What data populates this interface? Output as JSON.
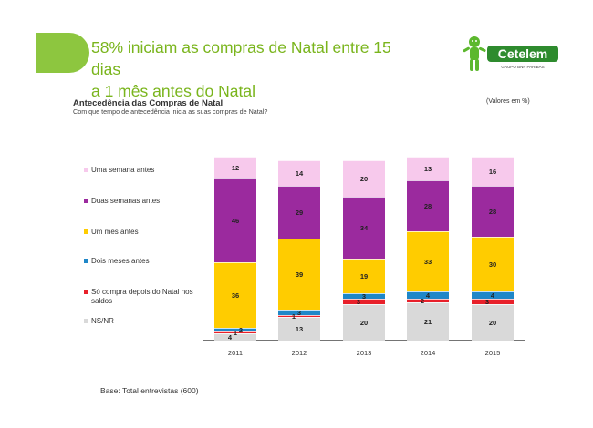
{
  "header": {
    "title_line1": "58% iniciam as compras de Natal entre 15 dias",
    "title_line2": "a 1 mês antes do Natal"
  },
  "logo": {
    "brand": "Cetelem",
    "tagline": "GRUPO BNP PARIBAS",
    "color": "#2e8b2e"
  },
  "section": {
    "title": "Antecedência das Compras de Natal",
    "subtitle": "Com que tempo de antecedência inicia as suas compras de Natal?",
    "units": "(Valores em %)"
  },
  "footer": {
    "base": "Base: Total entrevistas (600)"
  },
  "chart_data": {
    "type": "bar",
    "stacked": true,
    "categories": [
      "2011",
      "2012",
      "2013",
      "2014",
      "2015"
    ],
    "series": [
      {
        "name": "NS/NR",
        "color": "#d9d9d9",
        "values": [
          4,
          13,
          20,
          21,
          20
        ]
      },
      {
        "name": "Só compra depois do Natal nos saldos",
        "color": "#e8202a",
        "values": [
          1,
          1,
          3,
          2,
          3
        ]
      },
      {
        "name": "Dois meses antes",
        "color": "#1f87c8",
        "values": [
          2,
          3,
          3,
          4,
          4
        ]
      },
      {
        "name": "Um mês antes",
        "color": "#ffcc00",
        "values": [
          36,
          39,
          19,
          33,
          30
        ]
      },
      {
        "name": "Duas semanas antes",
        "color": "#9b2a9e",
        "values": [
          46,
          29,
          34,
          28,
          28
        ]
      },
      {
        "name": "Uma semana antes",
        "color": "#f7c9ec",
        "values": [
          12,
          14,
          20,
          13,
          16
        ]
      }
    ],
    "legend_order": [
      "Uma semana antes",
      "Duas semanas antes",
      "Um mês antes",
      "Dois meses antes",
      "Só compra depois do Natal nos saldos",
      "NS/NR"
    ],
    "legend_position": "left",
    "grid": false,
    "ylim": [
      0,
      100
    ]
  }
}
